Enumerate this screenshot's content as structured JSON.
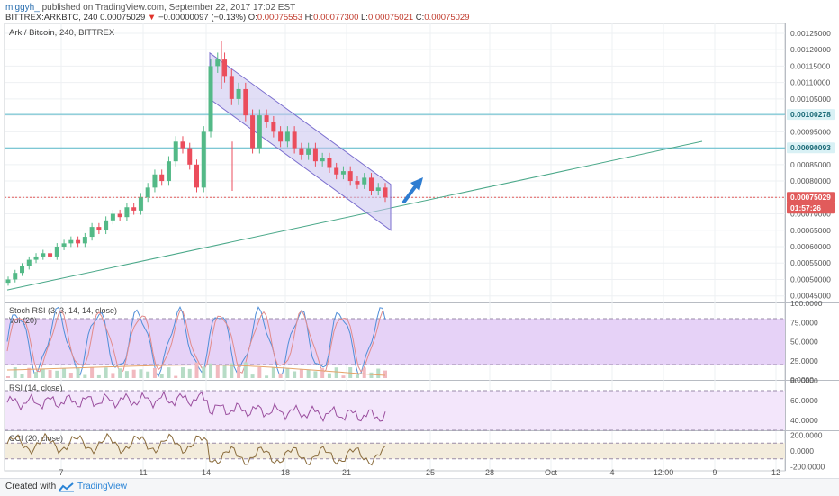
{
  "header": {
    "user": "miggyh_",
    "published": " published on TradingView.com, September 22, 2017 17:02 EST",
    "symbol": "BITTREX:ARKBTC, 240",
    "last": "0.00075029",
    "change": "−0.00000097 (−0.13%)",
    "o_label": "O:",
    "o_val": "0.00075553",
    "h_label": "H:",
    "h_val": "0.00077300",
    "l_label": "L:",
    "l_val": "0.00075021",
    "c_label": "C:",
    "c_val": "0.00075029"
  },
  "footer": {
    "created_with": "Created with",
    "brand": "TradingView"
  },
  "colors": {
    "up": "#53b987",
    "down": "#eb4d5c",
    "channel": "#7b6fcf",
    "trend": "#4aa889",
    "stoch_band": "#e6d2f7",
    "rsi_band": "#f3e6fb",
    "cci_band": "#f3ecdc",
    "arrow": "#2e7dd1"
  },
  "chart_data": [
    {
      "type": "candlestick",
      "title": "Ark / Bitcoin, 240, BITTREX",
      "x_ticks": [
        "7",
        "11",
        "14",
        "18",
        "21",
        "25",
        "28",
        "Oct",
        "4",
        "12:00",
        "9",
        "12"
      ],
      "y_ticks": [
        "0.00125000",
        "0.00120000",
        "0.00115000",
        "0.00110000",
        "0.00105000",
        "0.00100000",
        "0.00095000",
        "0.00090000",
        "0.00085000",
        "0.00080000",
        "0.00075000",
        "0.00070000",
        "0.00065000",
        "0.00060000",
        "0.00055000",
        "0.00050000",
        "0.00045000"
      ],
      "ylim": [
        0.00043,
        0.00128
      ],
      "price_labels": [
        {
          "value": 0.00100278,
          "text": "0.00100278"
        },
        {
          "value": 0.00090093,
          "text": "0.00090093"
        },
        {
          "value": 0.00075029,
          "text": "0.00075029"
        }
      ],
      "countdown": "01:57:26",
      "closes": [
        0.0005,
        0.00052,
        0.00054,
        0.00056,
        0.00057,
        0.00058,
        0.00057,
        0.0006,
        0.00061,
        0.00062,
        0.00061,
        0.00063,
        0.00066,
        0.00065,
        0.00068,
        0.0007,
        0.00069,
        0.00072,
        0.00071,
        0.00075,
        0.00078,
        0.00082,
        0.0008,
        0.00086,
        0.00092,
        0.0009,
        0.00085,
        0.00078,
        0.00095,
        0.00115,
        0.00117,
        0.00112,
        0.00105,
        0.00108,
        0.001,
        0.0009,
        0.001,
        0.00098,
        0.00095,
        0.00092,
        0.00095,
        0.0009,
        0.00088,
        0.0009,
        0.00086,
        0.00087,
        0.00084,
        0.00082,
        0.00083,
        0.0008,
        0.00079,
        0.00081,
        0.00077,
        0.00078,
        0.00075
      ],
      "trendline": [
        [
          0,
          0.00047
        ],
        [
          1.27,
          0.00092
        ]
      ],
      "channel": {
        "upper": [
          [
            0.269,
            0.00119
          ],
          [
            0.5,
            0.00079
          ]
        ],
        "lower": [
          [
            0.269,
            0.00105
          ],
          [
            0.5,
            0.00065
          ]
        ]
      }
    },
    {
      "type": "line",
      "title": "Stoch RSI (3, 3, 14, 14, close)",
      "y_ticks": [
        "100.0000",
        "75.0000",
        "50.0000",
        "25.0000",
        "0.0000"
      ],
      "ylim": [
        0,
        100
      ],
      "band": [
        20,
        80
      ]
    },
    {
      "type": "bar",
      "title": "Vol (20)"
    },
    {
      "type": "line",
      "title": "RSI (14, close)",
      "y_ticks": [
        "80.0000",
        "60.0000",
        "40.0000"
      ],
      "ylim": [
        30,
        80
      ],
      "band": [
        30,
        70
      ]
    },
    {
      "type": "line",
      "title": "CCI (20, close)",
      "y_ticks": [
        "200.0000",
        "0.0000",
        "-200.0000"
      ],
      "ylim": [
        -250,
        250
      ],
      "band": [
        -100,
        100
      ]
    }
  ]
}
